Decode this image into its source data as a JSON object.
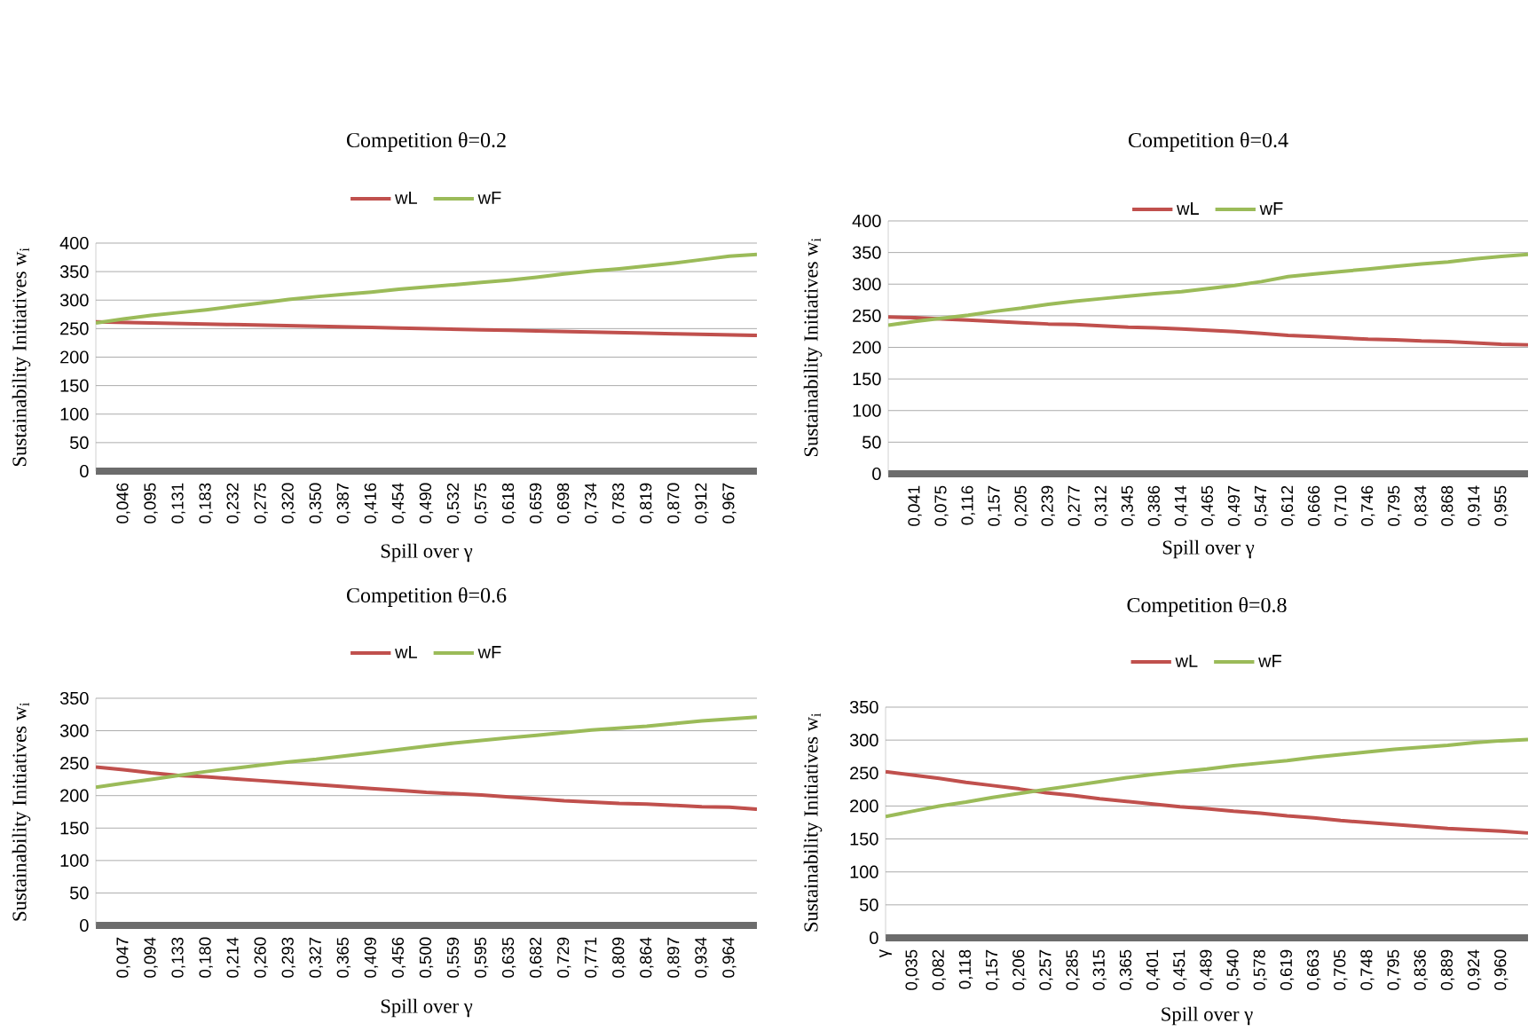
{
  "chart_data": [
    {
      "type": "line",
      "title": "Competition θ=0.2",
      "xlabel": "Spill over γ",
      "ylabel": "Sustainability Initiatives  w$_{i}$",
      "grid": "y",
      "legend": "top",
      "ylim": [
        0,
        400
      ],
      "yticks": [
        0,
        50,
        100,
        150,
        200,
        250,
        300,
        350,
        400
      ],
      "categories": [
        null,
        "0,046",
        "0,095",
        "0,131",
        "0,183",
        "0,232",
        "0,275",
        "0,320",
        "0,350",
        "0,387",
        "0,416",
        "0,454",
        "0,490",
        "0,532",
        "0,575",
        "0,618",
        "0,659",
        "0,698",
        "0,734",
        "0,783",
        "0,819",
        "0,870",
        "0,912",
        "0,967",
        null
      ],
      "series": [
        {
          "name": "wL",
          "color": "#c0504d",
          "values": [
            262,
            261,
            260,
            259,
            258,
            257,
            256,
            255,
            254,
            253,
            252,
            251,
            250,
            249,
            248,
            247,
            246,
            245,
            244,
            243,
            242,
            241,
            240,
            239,
            238
          ]
        },
        {
          "name": "wF",
          "color": "#9bbb59",
          "values": [
            260,
            267,
            273,
            278,
            283,
            289,
            295,
            301,
            306,
            310,
            314,
            319,
            323,
            327,
            331,
            335,
            340,
            346,
            351,
            355,
            360,
            365,
            371,
            377,
            380
          ]
        }
      ]
    },
    {
      "type": "line",
      "title": "Competition θ=0.4",
      "xlabel": "Spill over γ",
      "ylabel": "Sustainability Initiatives  w$_{i}$",
      "grid": "y",
      "legend": "top",
      "ylim": [
        0,
        400
      ],
      "yticks": [
        0,
        50,
        100,
        150,
        200,
        250,
        300,
        350,
        400
      ],
      "categories": [
        null,
        "0,041",
        "0,075",
        "0,116",
        "0,157",
        "0,205",
        "0,239",
        "0,277",
        "0,312",
        "0,345",
        "0,386",
        "0,414",
        "0,465",
        "0,497",
        "0,547",
        "0,612",
        "0,666",
        "0,710",
        "0,746",
        "0,795",
        "0,834",
        "0,868",
        "0,914",
        "0,955",
        null
      ],
      "series": [
        {
          "name": "wL",
          "color": "#c0504d",
          "values": [
            248,
            247,
            245,
            243,
            241,
            239,
            237,
            236,
            234,
            232,
            231,
            229,
            227,
            225,
            222,
            219,
            217,
            215,
            213,
            212,
            210,
            209,
            207,
            205,
            204
          ]
        },
        {
          "name": "wF",
          "color": "#9bbb59",
          "values": [
            235,
            241,
            246,
            251,
            257,
            262,
            268,
            273,
            277,
            281,
            285,
            288,
            293,
            298,
            304,
            312,
            316,
            320,
            324,
            328,
            332,
            335,
            340,
            344,
            347
          ]
        }
      ]
    },
    {
      "type": "line",
      "title": "Competition θ=0.6",
      "xlabel": "Spill over γ",
      "ylabel": "Sustainability Initiatives  w$_{i}$",
      "grid": "y",
      "legend": "top",
      "ylim": [
        0,
        350
      ],
      "yticks": [
        0,
        50,
        100,
        150,
        200,
        250,
        300,
        350
      ],
      "categories": [
        null,
        "0,047",
        "0,094",
        "0,133",
        "0,180",
        "0,214",
        "0,260",
        "0,293",
        "0,327",
        "0,365",
        "0,409",
        "0,456",
        "0,500",
        "0,559",
        "0,595",
        "0,635",
        "0,682",
        "0,729",
        "0,771",
        "0,809",
        "0,864",
        "0,897",
        "0,934",
        "0,964",
        null
      ],
      "series": [
        {
          "name": "wL",
          "color": "#c0504d",
          "values": [
            244,
            240,
            235,
            231,
            229,
            226,
            223,
            220,
            217,
            214,
            211,
            208,
            205,
            203,
            201,
            198,
            195,
            192,
            190,
            188,
            187,
            185,
            183,
            182,
            179
          ]
        },
        {
          "name": "wF",
          "color": "#9bbb59",
          "values": [
            213,
            219,
            225,
            231,
            237,
            242,
            247,
            252,
            256,
            261,
            266,
            271,
            276,
            281,
            285,
            289,
            293,
            297,
            301,
            304,
            307,
            311,
            315,
            318,
            321
          ]
        }
      ]
    },
    {
      "type": "line",
      "title": "Competition θ=0.8",
      "xlabel": "Spill over γ",
      "ylabel": "Sustainability Initiatives  w$_{i}$",
      "grid": "y",
      "legend": "top",
      "ylim": [
        0,
        350
      ],
      "yticks": [
        0,
        50,
        100,
        150,
        200,
        250,
        300,
        350
      ],
      "categories": [
        "γ",
        "0,035",
        "0,082",
        "0,118",
        "0,157",
        "0,206",
        "0,257",
        "0,285",
        "0,315",
        "0,365",
        "0,401",
        "0,451",
        "0,489",
        "0,540",
        "0,578",
        "0,619",
        "0,663",
        "0,705",
        "0,748",
        "0,795",
        "0,836",
        "0,889",
        "0,924",
        "0,960",
        null
      ],
      "series": [
        {
          "name": "wL",
          "color": "#c0504d",
          "values": [
            252,
            247,
            242,
            236,
            231,
            226,
            220,
            216,
            211,
            207,
            203,
            199,
            196,
            192,
            189,
            185,
            182,
            178,
            175,
            172,
            169,
            166,
            164,
            162,
            159
          ]
        },
        {
          "name": "wF",
          "color": "#9bbb59",
          "values": [
            184,
            192,
            200,
            206,
            213,
            219,
            225,
            231,
            237,
            243,
            248,
            252,
            256,
            261,
            265,
            269,
            274,
            278,
            282,
            286,
            289,
            292,
            296,
            299,
            301
          ]
        }
      ]
    }
  ]
}
